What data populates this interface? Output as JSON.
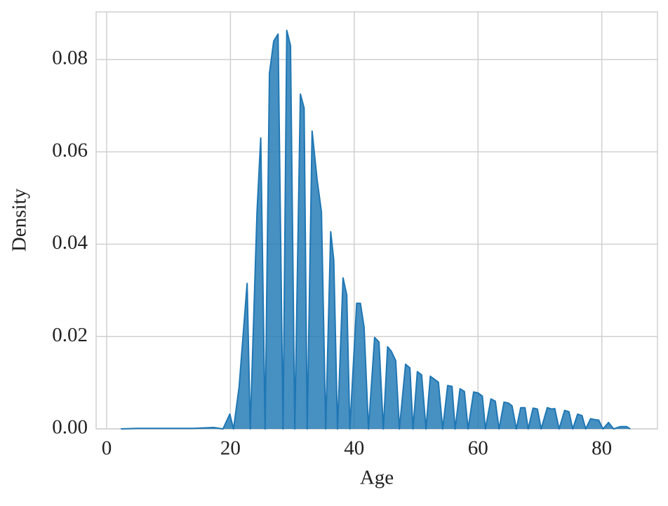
{
  "chart_data": {
    "type": "area",
    "xlabel": "Age",
    "ylabel": "Density",
    "x": [
      2.3,
      5,
      8,
      11,
      14,
      17.3,
      18.8,
      19.9,
      20.5,
      21.4,
      22.7,
      23.2,
      24.3,
      24.9,
      25.6,
      26.3,
      27.0,
      27.7,
      28.5,
      29.1,
      29.7,
      30.4,
      31.3,
      31.9,
      32.4,
      33.2,
      34.0,
      34.7,
      35.4,
      36.2,
      36.7,
      37.3,
      38.2,
      38.8,
      39.3,
      40.4,
      41.0,
      41.6,
      42.3,
      43.3,
      44.0,
      44.7,
      45.4,
      46.0,
      46.7,
      47.3,
      48.3,
      49.0,
      49.5,
      50.2,
      50.9,
      51.6,
      52.3,
      52.9,
      53.6,
      54.3,
      55.1,
      55.8,
      56.3,
      57.1,
      57.8,
      58.4,
      59.3,
      60.0,
      60.7,
      61.2,
      62.1,
      62.8,
      63.4,
      64.2,
      64.9,
      65.5,
      66.2,
      66.9,
      67.6,
      68.1,
      68.9,
      69.6,
      70.2,
      71.2,
      71.9,
      72.4,
      73.1,
      74.0,
      74.7,
      75.3,
      76.1,
      76.8,
      77.4,
      78.2,
      78.9,
      79.5,
      80.2,
      81.1,
      81.9,
      83.0,
      84.0,
      84.6
    ],
    "values": [
      0,
      0.0001,
      0.0001,
      0.0001,
      0.0001,
      0.0003,
      0,
      0.0032,
      0,
      0.009,
      0.0315,
      0,
      0.047,
      0.063,
      0,
      0.077,
      0.084,
      0.0855,
      0,
      0.0863,
      0.083,
      0,
      0.0725,
      0.0695,
      0,
      0.0645,
      0.054,
      0.047,
      0,
      0.0427,
      0.0365,
      0,
      0.0327,
      0.029,
      0,
      0.0272,
      0.0272,
      0.022,
      0,
      0.0198,
      0.0188,
      0,
      0.0178,
      0.0168,
      0.0148,
      0,
      0.014,
      0.0132,
      0,
      0.0124,
      0.0117,
      0,
      0.0114,
      0.0108,
      0.0101,
      0,
      0.0094,
      0.0092,
      0,
      0.0087,
      0.0081,
      0,
      0.008,
      0.0078,
      0.0071,
      0,
      0.0065,
      0.006,
      0,
      0.0058,
      0.0056,
      0.005,
      0,
      0.0046,
      0.0046,
      0,
      0.0045,
      0.0043,
      0,
      0.0046,
      0.0043,
      0.0044,
      0,
      0.004,
      0.0037,
      0,
      0.0032,
      0.0029,
      0,
      0.0022,
      0.002,
      0.0019,
      0,
      0.0014,
      0,
      0.0005,
      0.0005,
      0
    ],
    "color": "#1f77b4",
    "xlim": [
      -1.7,
      89
    ],
    "ylim": [
      0,
      0.0903
    ],
    "xticks": [
      0,
      20,
      40,
      60,
      80
    ],
    "yticks": [
      {
        "value": 0,
        "label": "0.00"
      },
      0.02,
      0.04,
      0.06,
      0.08
    ],
    "grid": true
  }
}
